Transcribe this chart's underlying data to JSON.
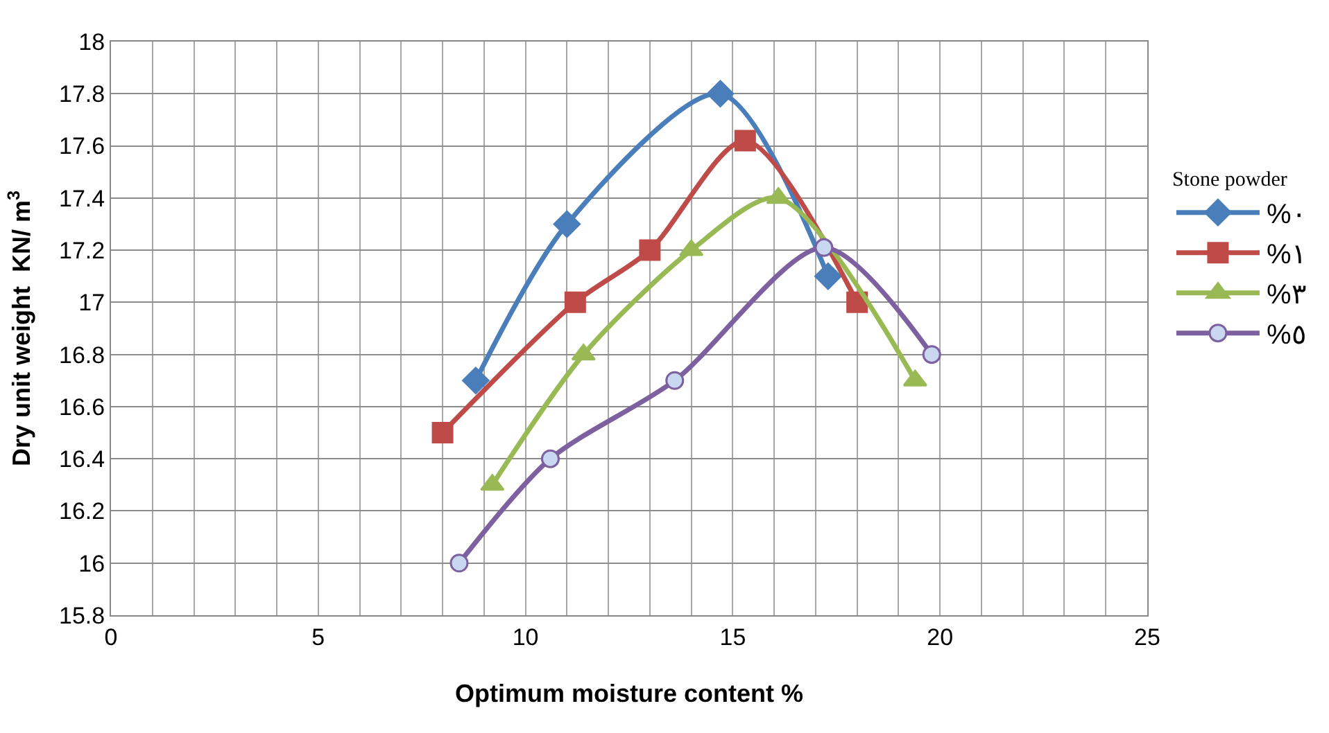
{
  "chart_data": {
    "type": "line",
    "xlabel": "Optimum moisture content %",
    "ylabel": "Dry unit weight  KN/ m$^{3}$",
    "legend_title": "Stone powder",
    "legend": "right",
    "grid": true,
    "line_style": "solid",
    "xlim": [
      0,
      25
    ],
    "ylim": [
      15.8,
      18
    ],
    "xticks": [
      0,
      {
        "value": 1,
        "label": null
      },
      {
        "value": 2,
        "label": null
      },
      {
        "value": 3,
        "label": null
      },
      {
        "value": 4,
        "label": null
      },
      5,
      {
        "value": 6,
        "label": null
      },
      {
        "value": 7,
        "label": null
      },
      {
        "value": 8,
        "label": null
      },
      {
        "value": 9,
        "label": null
      },
      10,
      {
        "value": 11,
        "label": null
      },
      {
        "value": 12,
        "label": null
      },
      {
        "value": 13,
        "label": null
      },
      {
        "value": 14,
        "label": null
      },
      15,
      {
        "value": 16,
        "label": null
      },
      {
        "value": 17,
        "label": null
      },
      {
        "value": 18,
        "label": null
      },
      {
        "value": 19,
        "label": null
      },
      20,
      {
        "value": 21,
        "label": null
      },
      {
        "value": 22,
        "label": null
      },
      {
        "value": 23,
        "label": null
      },
      {
        "value": 24,
        "label": null
      },
      25
    ],
    "yticks": [
      15.8,
      16,
      16.2,
      16.4,
      16.6,
      16.8,
      17,
      17.2,
      17.4,
      17.6,
      17.8,
      18
    ],
    "series": [
      {
        "name": "%٠",
        "color": "#4a7ebb",
        "marker": "diamond",
        "x": [
          8.8,
          11.0,
          14.7,
          17.3
        ],
        "values": [
          16.7,
          17.3,
          17.8,
          17.1
        ]
      },
      {
        "name": "%١",
        "color": "#be4b48",
        "marker": "square",
        "x": [
          8.0,
          11.2,
          13.0,
          15.3,
          18.0
        ],
        "values": [
          16.5,
          17.0,
          17.2,
          17.62,
          17.0
        ]
      },
      {
        "name": "%٣",
        "color": "#98b954",
        "marker": "triangle",
        "x": [
          9.2,
          11.4,
          14.0,
          16.1,
          19.4
        ],
        "values": [
          16.3,
          16.8,
          17.2,
          17.4,
          16.7
        ]
      },
      {
        "name": "%٥",
        "color": "#7d60a0",
        "marker": "circle",
        "x": [
          8.4,
          10.6,
          13.6,
          17.2,
          19.8
        ],
        "values": [
          16.0,
          16.4,
          16.7,
          17.21,
          16.8
        ]
      }
    ]
  }
}
